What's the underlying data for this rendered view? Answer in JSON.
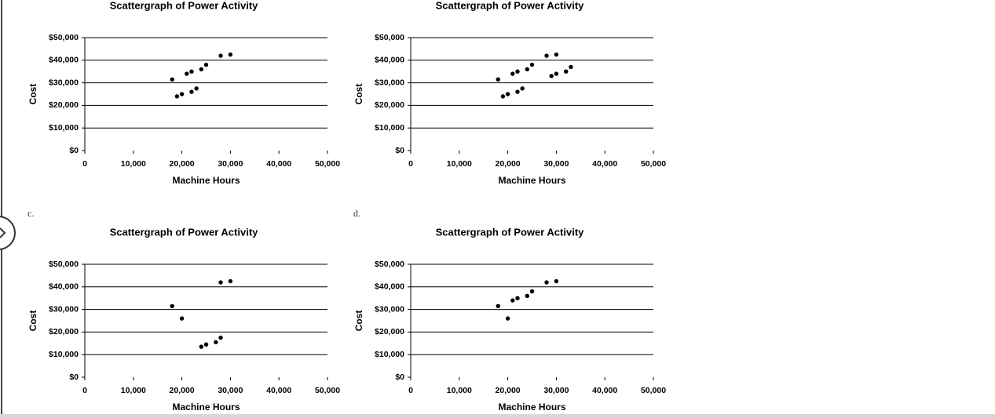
{
  "chart_data": [
    {
      "type": "scatter",
      "title": "Scattergraph of Power Activity",
      "xlabel": "Machine Hours",
      "ylabel": "Cost",
      "x": [
        18000,
        19000,
        20000,
        21000,
        22000,
        22000,
        23000,
        24000,
        25000,
        28000,
        30000
      ],
      "values": [
        31500,
        24000,
        25000,
        34000,
        35000,
        26000,
        27500,
        36000,
        38000,
        42000,
        42500
      ],
      "color": "#000000",
      "xlim": [
        0,
        50000
      ],
      "ylim": [
        0,
        50000
      ],
      "xticks": [
        0,
        {
          "value": 10000,
          "label": "10,000"
        },
        {
          "value": 20000,
          "label": "20,000"
        },
        {
          "value": 30000,
          "label": "30,000"
        },
        {
          "value": 40000,
          "label": "40,000"
        },
        {
          "value": 50000,
          "label": "50,000"
        }
      ],
      "yticks": [
        {
          "value": 0,
          "label": "$0"
        },
        {
          "value": 10000,
          "label": "$10,000"
        },
        {
          "value": 20000,
          "label": "$20,000"
        },
        {
          "value": 30000,
          "label": "$30,000"
        },
        {
          "value": 40000,
          "label": "$40,000"
        },
        {
          "value": 50000,
          "label": "$50,000"
        }
      ],
      "grid": true
    },
    {
      "type": "scatter",
      "title": "Scattergraph of Power Activity",
      "xlabel": "Machine Hours",
      "ylabel": "Cost",
      "x": [
        18000,
        19000,
        20000,
        21000,
        22000,
        22000,
        23000,
        24000,
        25000,
        28000,
        29000,
        30000,
        30000,
        32000,
        33000
      ],
      "values": [
        31500,
        24000,
        25000,
        34000,
        35000,
        26000,
        27500,
        36000,
        38000,
        42000,
        33000,
        42500,
        34000,
        35000,
        37000
      ],
      "color": "#000000",
      "xlim": [
        0,
        50000
      ],
      "ylim": [
        0,
        50000
      ],
      "xticks": [
        0,
        {
          "value": 10000,
          "label": "10,000"
        },
        {
          "value": 20000,
          "label": "20,000"
        },
        {
          "value": 30000,
          "label": "30,000"
        },
        {
          "value": 40000,
          "label": "40,000"
        },
        {
          "value": 50000,
          "label": "50,000"
        }
      ],
      "yticks": [
        {
          "value": 0,
          "label": "$0"
        },
        {
          "value": 10000,
          "label": "$10,000"
        },
        {
          "value": 20000,
          "label": "$20,000"
        },
        {
          "value": 30000,
          "label": "$30,000"
        },
        {
          "value": 40000,
          "label": "$40,000"
        },
        {
          "value": 50000,
          "label": "$50,000"
        }
      ],
      "grid": true
    },
    {
      "type": "scatter",
      "label": "c.",
      "title": "Scattergraph of Power Activity",
      "xlabel": "Machine Hours",
      "ylabel": "Cost",
      "x": [
        18000,
        20000,
        24000,
        25000,
        27000,
        28000,
        28000,
        30000
      ],
      "values": [
        31500,
        26000,
        13500,
        14500,
        15500,
        17500,
        42000,
        42500
      ],
      "color": "#000000",
      "xlim": [
        0,
        50000
      ],
      "ylim": [
        0,
        50000
      ],
      "xticks": [
        0,
        {
          "value": 10000,
          "label": "10,000"
        },
        {
          "value": 20000,
          "label": "20,000"
        },
        {
          "value": 30000,
          "label": "30,000"
        },
        {
          "value": 40000,
          "label": "40,000"
        },
        {
          "value": 50000,
          "label": "50,000"
        }
      ],
      "yticks": [
        {
          "value": 0,
          "label": "$0"
        },
        {
          "value": 10000,
          "label": "$10,000"
        },
        {
          "value": 20000,
          "label": "$20,000"
        },
        {
          "value": 30000,
          "label": "$30,000"
        },
        {
          "value": 40000,
          "label": "$40,000"
        },
        {
          "value": 50000,
          "label": "$50,000"
        }
      ],
      "grid": true
    },
    {
      "type": "scatter",
      "label": "d.",
      "title": "Scattergraph of Power Activity",
      "xlabel": "Machine Hours",
      "ylabel": "Cost",
      "x": [
        18000,
        20000,
        21000,
        22000,
        24000,
        25000,
        28000,
        30000
      ],
      "values": [
        31500,
        26000,
        34000,
        35000,
        36000,
        38000,
        42000,
        42500
      ],
      "color": "#000000",
      "xlim": [
        0,
        50000
      ],
      "ylim": [
        0,
        50000
      ],
      "xticks": [
        0,
        {
          "value": 10000,
          "label": "10,000"
        },
        {
          "value": 20000,
          "label": "20,000"
        },
        {
          "value": 30000,
          "label": "30,000"
        },
        {
          "value": 40000,
          "label": "40,000"
        },
        {
          "value": 50000,
          "label": "50,000"
        }
      ],
      "yticks": [
        {
          "value": 0,
          "label": "$0"
        },
        {
          "value": 10000,
          "label": "$10,000"
        },
        {
          "value": 20000,
          "label": "$20,000"
        },
        {
          "value": 30000,
          "label": "$30,000"
        },
        {
          "value": 40000,
          "label": "$40,000"
        },
        {
          "value": 50000,
          "label": "$50,000"
        }
      ],
      "grid": true
    }
  ]
}
